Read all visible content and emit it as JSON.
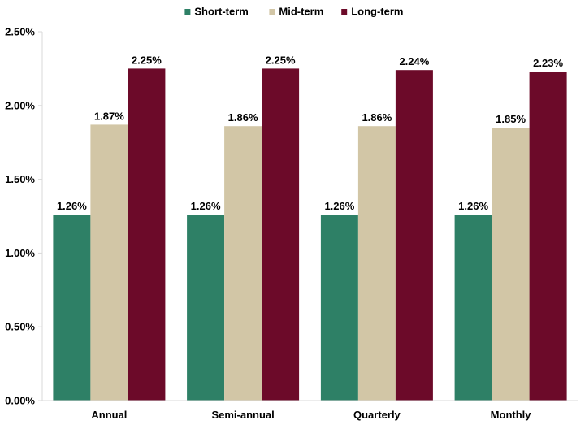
{
  "chart_data": {
    "type": "bar",
    "categories": [
      "Annual",
      "Semi-annual",
      "Quarterly",
      "Monthly"
    ],
    "series": [
      {
        "name": "Short-term",
        "color": "#2e8066",
        "values": [
          1.26,
          1.26,
          1.26,
          1.26
        ],
        "labels": [
          "1.26%",
          "1.26%",
          "1.26%",
          "1.26%"
        ]
      },
      {
        "name": "Mid-term",
        "color": "#d2c6a6",
        "values": [
          1.87,
          1.86,
          1.86,
          1.85
        ],
        "labels": [
          "1.87%",
          "1.86%",
          "1.86%",
          "1.85%"
        ]
      },
      {
        "name": "Long-term",
        "color": "#6c0a29",
        "values": [
          2.25,
          2.25,
          2.24,
          2.23
        ],
        "labels": [
          "2.25%",
          "2.25%",
          "2.24%",
          "2.23%"
        ]
      }
    ],
    "ylim": [
      0,
      2.5
    ],
    "yticks": [
      0,
      0.5,
      1.0,
      1.5,
      2.0,
      2.5
    ],
    "ytick_labels": [
      "0.00%",
      "0.50%",
      "1.00%",
      "1.50%",
      "2.00%",
      "2.50%"
    ],
    "grid": false,
    "legend_position": "top-center",
    "title": "",
    "xlabel": "",
    "ylabel": ""
  }
}
